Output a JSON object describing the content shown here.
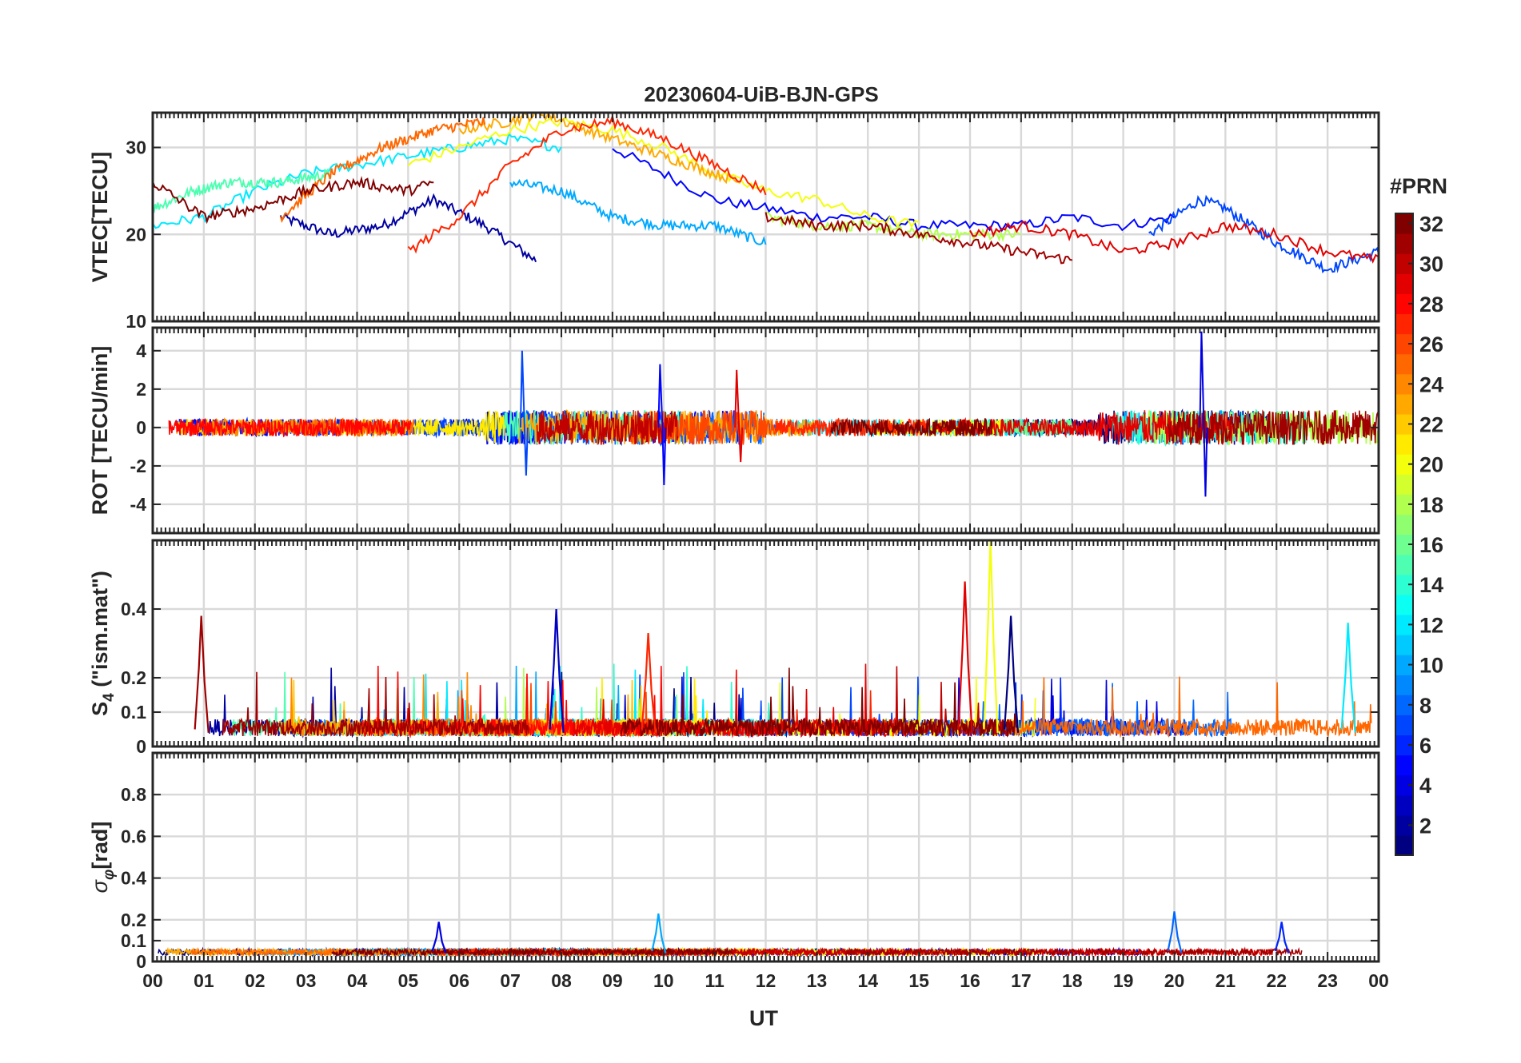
{
  "figure": {
    "title": "20230604-UiB-BJN-GPS",
    "xlabel": "UT",
    "colorbar": {
      "title": "#PRN",
      "range": [
        1,
        32
      ],
      "ticks": [
        "2",
        "4",
        "6",
        "8",
        "10",
        "12",
        "14",
        "16",
        "18",
        "20",
        "22",
        "24",
        "26",
        "28",
        "30",
        "32"
      ],
      "colormap": "jet"
    }
  },
  "chart_data": [
    {
      "type": "line",
      "name": "vtec",
      "ylabel": "VTEC[TECU]",
      "ylim": [
        10,
        34
      ],
      "yticks": [
        10,
        20,
        30
      ],
      "xlim": [
        0,
        24
      ],
      "x_ticks": [
        "00",
        "01",
        "02",
        "03",
        "04",
        "05",
        "06",
        "07",
        "08",
        "09",
        "10",
        "11",
        "12",
        "13",
        "14",
        "15",
        "16",
        "17",
        "18",
        "19",
        "20",
        "21",
        "22",
        "23",
        "00"
      ],
      "grid": true,
      "series": [
        {
          "prn": 2,
          "x": [
            2.5,
            3.5,
            4.5,
            5.5,
            6.5,
            7.5
          ],
          "values": [
            22,
            20,
            21,
            24,
            21,
            17
          ]
        },
        {
          "prn": 5,
          "x": [
            9.0,
            10.0,
            11.0,
            12.0,
            13.0,
            14.0,
            15.0,
            16.0,
            17.0,
            18.0,
            19.0,
            20.0
          ],
          "values": [
            30,
            27,
            24,
            23,
            22,
            22,
            21,
            21,
            21,
            22,
            21,
            22
          ]
        },
        {
          "prn": 7,
          "x": [
            19.5,
            20.5,
            21.0,
            22.0,
            23.0,
            24.0
          ],
          "values": [
            20,
            24,
            23,
            19,
            16,
            18
          ]
        },
        {
          "prn": 10,
          "x": [
            7.0,
            8.0,
            9.0,
            10.0,
            11.0,
            12.0
          ],
          "values": [
            26,
            25,
            22,
            21,
            21,
            19
          ]
        },
        {
          "prn": 12,
          "x": [
            0.0,
            1.0,
            2.0,
            3.0,
            4.0,
            5.0,
            6.0,
            7.0,
            8.0
          ],
          "values": [
            21,
            22,
            25,
            27,
            28,
            29,
            30,
            31,
            30
          ]
        },
        {
          "prn": 15,
          "x": [
            0.0,
            0.8,
            1.5,
            2.5,
            3.5
          ],
          "values": [
            23,
            25,
            26,
            26,
            27
          ]
        },
        {
          "prn": 18,
          "x": [
            12.0,
            13.0,
            14.0,
            15.0,
            16.0,
            17.0
          ],
          "values": [
            22,
            21,
            21,
            20,
            20,
            20
          ]
        },
        {
          "prn": 20,
          "x": [
            5.0,
            6.0,
            7.0,
            8.0,
            9.0,
            10.0,
            11.0,
            12.0,
            13.0,
            14.0,
            15.0
          ],
          "values": [
            28,
            30,
            32,
            33,
            32,
            30,
            27,
            25,
            24,
            22,
            21
          ]
        },
        {
          "prn": 23,
          "x": [
            6.0,
            7.0,
            7.6,
            8.5,
            9.5,
            10.5,
            11.5
          ],
          "values": [
            32,
            33,
            34,
            32,
            30,
            28,
            26
          ]
        },
        {
          "prn": 25,
          "x": [
            2.5,
            3.5,
            4.5,
            5.5,
            6.5
          ],
          "values": [
            22,
            27,
            30,
            32,
            33
          ]
        },
        {
          "prn": 27,
          "x": [
            5.0,
            6.0,
            7.0,
            8.0,
            9.0,
            10.0,
            11.0,
            12.0
          ],
          "values": [
            18,
            22,
            28,
            32,
            33,
            31,
            28,
            25
          ]
        },
        {
          "prn": 29,
          "x": [
            16.0,
            17.0,
            18.0,
            19.0,
            20.0,
            21.0,
            22.0,
            23.0,
            24.0
          ],
          "values": [
            20,
            21,
            20,
            18,
            19,
            21,
            20,
            18,
            17
          ]
        },
        {
          "prn": 31,
          "x": [
            12.0,
            13.0,
            14.0,
            15.0,
            16.0,
            17.0,
            18.0
          ],
          "values": [
            22,
            21,
            21,
            20,
            19,
            18,
            17
          ]
        },
        {
          "prn": 32,
          "x": [
            0.0,
            0.5,
            1.0,
            2.0,
            3.0,
            4.0,
            5.0,
            5.5
          ],
          "values": [
            26,
            24,
            22,
            23,
            25,
            26,
            25,
            26
          ]
        }
      ]
    },
    {
      "type": "line",
      "name": "rot",
      "ylabel": "ROT [TECU/min]",
      "ylim": [
        -5.5,
        5.2
      ],
      "yticks": [
        -4,
        -2,
        0,
        2,
        4
      ],
      "grid": true,
      "spikes": [
        {
          "prn": 7,
          "x": 7.2,
          "values": [
            4.0,
            -2.5
          ]
        },
        {
          "prn": 5,
          "x": 9.9,
          "values": [
            3.3,
            -3.0
          ]
        },
        {
          "prn": 4,
          "x": 20.5,
          "values": [
            5.0,
            -3.6
          ]
        },
        {
          "prn": 29,
          "x": 11.4,
          "values": [
            3.0,
            -1.8
          ]
        }
      ]
    },
    {
      "type": "line",
      "name": "s4",
      "ylabel": "S4 (\"ism.mat\")",
      "ylabel_main": "S",
      "ylabel_sub": "4",
      "ylabel_rest": " (\"ism.mat\")",
      "ylim": [
        0,
        0.6
      ],
      "yticks": [
        0,
        0.1,
        0.2,
        0.4
      ],
      "grid": true,
      "peaks": [
        {
          "prn": 31,
          "x": 0.95,
          "value": 0.38
        },
        {
          "prn": 3,
          "x": 7.9,
          "value": 0.4
        },
        {
          "prn": 27,
          "x": 9.7,
          "value": 0.33
        },
        {
          "prn": 20,
          "x": 16.4,
          "value": 0.6
        },
        {
          "prn": 29,
          "x": 15.9,
          "value": 0.48
        },
        {
          "prn": 1,
          "x": 16.8,
          "value": 0.38
        },
        {
          "prn": 12,
          "x": 23.4,
          "value": 0.36
        }
      ]
    },
    {
      "type": "line",
      "name": "sigma_phi",
      "ylabel": "σφ[rad]",
      "ylabel_main": "σ",
      "ylabel_sub": "φ",
      "ylabel_rest": "[rad]",
      "ylim": [
        0,
        1
      ],
      "yticks": [
        0,
        0.1,
        0.2,
        0.4,
        0.6,
        0.8
      ],
      "grid": true,
      "peaks": [
        {
          "prn": 4,
          "x": 5.6,
          "value": 0.19
        },
        {
          "prn": 10,
          "x": 9.9,
          "value": 0.23
        },
        {
          "prn": 8,
          "x": 20.0,
          "value": 0.24
        },
        {
          "prn": 6,
          "x": 22.1,
          "value": 0.19
        }
      ]
    }
  ]
}
